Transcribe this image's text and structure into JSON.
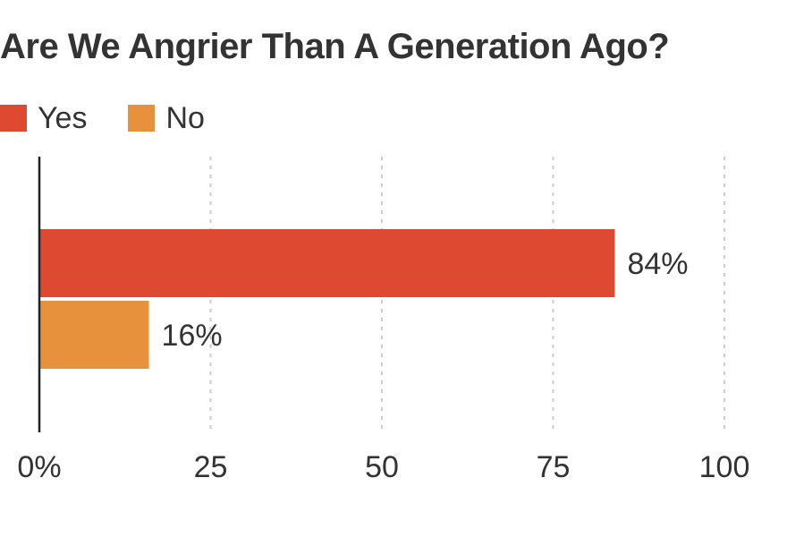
{
  "chart_data": {
    "type": "bar",
    "orientation": "horizontal",
    "title": "Are We Angrier Than A Generation Ago?",
    "xlabel": "",
    "ylabel": "",
    "xlim": [
      0,
      100
    ],
    "ticks": [
      {
        "value": 0,
        "label": "0%"
      },
      {
        "value": 25,
        "label": "25"
      },
      {
        "value": 50,
        "label": "50"
      },
      {
        "value": 75,
        "label": "75"
      },
      {
        "value": 100,
        "label": "100"
      }
    ],
    "grid": true,
    "legend_position": "top-left",
    "series": [
      {
        "name": "Yes",
        "value": 84,
        "label": "84%",
        "color": "#dd4a31"
      },
      {
        "name": "No",
        "value": 16,
        "label": "16%",
        "color": "#e8913c"
      }
    ]
  },
  "colors": {
    "text": "#333333",
    "axis": "#222222",
    "grid": "#cccccc"
  }
}
